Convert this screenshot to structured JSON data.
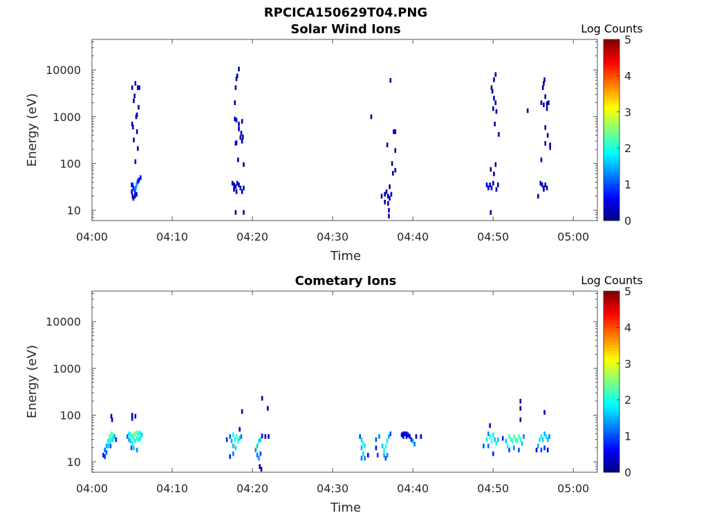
{
  "figure_title": "RPCICA150629T04.PNG",
  "colors": {
    "axis": "#262626",
    "background": "#ffffff"
  },
  "colormap": "jet",
  "chart_data": [
    {
      "type": "heatmap",
      "title": "Solar Wind Ions",
      "xlabel": "Time",
      "ylabel": "Energy (eV)",
      "yscale": "log",
      "xlim": [
        "04:00",
        "05:03"
      ],
      "ylim": [
        6,
        45000
      ],
      "xticks": [
        "04:00",
        "04:10",
        "04:20",
        "04:30",
        "04:40",
        "04:50",
        "05:00"
      ],
      "yticks": [
        "10",
        "100",
        "1000",
        "10000"
      ],
      "colorbar": {
        "label": "Log Counts",
        "min": 0,
        "max": 5,
        "ticks": [
          "0",
          "1",
          "2",
          "3",
          "4",
          "5"
        ]
      },
      "cells": [
        [
          4.95,
          35,
          0.5
        ],
        [
          5.05,
          35,
          0.6
        ],
        [
          5.15,
          30,
          0.7
        ],
        [
          5.25,
          28,
          1.0
        ],
        [
          5.35,
          25,
          0.9
        ],
        [
          5.45,
          30,
          1.3
        ],
        [
          5.55,
          35,
          1.4
        ],
        [
          5.65,
          40,
          1.2
        ],
        [
          5.75,
          42,
          0.8
        ],
        [
          5.85,
          45,
          0.6
        ],
        [
          6.05,
          50,
          0.5
        ],
        [
          4.95,
          25,
          0.3
        ],
        [
          5.05,
          20,
          0.2
        ],
        [
          5.15,
          18,
          0.2
        ],
        [
          5.35,
          20,
          0.4
        ],
        [
          5.55,
          22,
          0.5
        ],
        [
          5.0,
          4200,
          0.3
        ],
        [
          5.2,
          2200,
          0.3
        ],
        [
          5.3,
          2800,
          0.2
        ],
        [
          5.4,
          5200,
          0.3
        ],
        [
          5.7,
          4200,
          0.4
        ],
        [
          5.9,
          4200,
          0.4
        ],
        [
          5.5,
          1000,
          0.2
        ],
        [
          5.8,
          1600,
          0.2
        ],
        [
          5.0,
          700,
          0.3
        ],
        [
          5.1,
          600,
          0.3
        ],
        [
          5.2,
          320,
          0.2
        ],
        [
          5.6,
          480,
          0.2
        ],
        [
          5.7,
          210,
          0.2
        ],
        [
          5.4,
          110,
          0.2
        ],
        [
          5.6,
          1100,
          0.2
        ],
        [
          17.5,
          38,
          0.3
        ],
        [
          17.7,
          35,
          0.4
        ],
        [
          17.9,
          32,
          0.3
        ],
        [
          18.1,
          38,
          0.4
        ],
        [
          18.3,
          35,
          0.3
        ],
        [
          18.5,
          30,
          0.4
        ],
        [
          18.7,
          25,
          0.2
        ],
        [
          18.9,
          30,
          0.3
        ],
        [
          17.7,
          28,
          0.2
        ],
        [
          18.0,
          25,
          0.2
        ],
        [
          17.9,
          9,
          0.2
        ],
        [
          18.9,
          9,
          0.2
        ],
        [
          18.3,
          10500,
          0.3
        ],
        [
          18.1,
          7500,
          0.3
        ],
        [
          18.0,
          6500,
          0.3
        ],
        [
          17.9,
          4200,
          0.3
        ],
        [
          17.8,
          2000,
          0.2
        ],
        [
          17.8,
          900,
          0.3
        ],
        [
          18.0,
          850,
          0.3
        ],
        [
          18.3,
          700,
          0.2
        ],
        [
          18.7,
          800,
          0.2
        ],
        [
          18.6,
          450,
          0.2
        ],
        [
          18.8,
          370,
          0.2
        ],
        [
          18.7,
          300,
          0.2
        ],
        [
          18.0,
          280,
          0.4
        ],
        [
          17.9,
          270,
          0.3
        ],
        [
          18.2,
          120,
          0.2
        ],
        [
          18.9,
          95,
          0.2
        ],
        [
          18.3,
          550,
          0.2
        ],
        [
          18.5,
          360,
          0.2
        ],
        [
          36.1,
          20,
          0.2
        ],
        [
          36.5,
          22,
          0.2
        ],
        [
          36.9,
          20,
          0.3
        ],
        [
          37.1,
          18,
          0.4
        ],
        [
          36.7,
          25,
          0.3
        ],
        [
          37.3,
          22,
          0.3
        ],
        [
          37.1,
          32,
          0.2
        ],
        [
          36.9,
          14,
          0.3
        ],
        [
          37.0,
          10,
          0.3
        ],
        [
          37.0,
          7.5,
          0.3
        ],
        [
          36.5,
          15,
          0.2
        ],
        [
          37.2,
          6000,
          0.2
        ],
        [
          34.8,
          1000,
          0.2
        ],
        [
          37.6,
          480,
          0.3
        ],
        [
          37.8,
          480,
          0.3
        ],
        [
          36.8,
          250,
          0.2
        ],
        [
          37.8,
          190,
          0.2
        ],
        [
          37.4,
          100,
          0.2
        ],
        [
          37.8,
          72,
          0.2
        ],
        [
          37.5,
          62,
          0.2
        ],
        [
          49.2,
          35,
          0.4
        ],
        [
          49.4,
          30,
          0.6
        ],
        [
          49.6,
          35,
          0.5
        ],
        [
          49.8,
          30,
          0.4
        ],
        [
          50.0,
          38,
          0.3
        ],
        [
          50.4,
          28,
          0.3
        ],
        [
          50.6,
          35,
          0.2
        ],
        [
          49.7,
          75,
          0.2
        ],
        [
          50.1,
          60,
          0.2
        ],
        [
          50.3,
          95,
          0.2
        ],
        [
          49.7,
          9,
          0.2
        ],
        [
          50.3,
          8000,
          0.3
        ],
        [
          50.1,
          6200,
          0.3
        ],
        [
          49.8,
          4200,
          0.2
        ],
        [
          49.9,
          3500,
          0.2
        ],
        [
          50.1,
          2500,
          0.2
        ],
        [
          50.3,
          2000,
          0.2
        ],
        [
          50.0,
          1500,
          0.3
        ],
        [
          50.4,
          1300,
          0.2
        ],
        [
          50.2,
          700,
          0.3
        ],
        [
          50.7,
          420,
          0.2
        ],
        [
          54.3,
          1350,
          0.2
        ],
        [
          55.9,
          38,
          0.3
        ],
        [
          56.1,
          35,
          0.4
        ],
        [
          56.3,
          30,
          0.3
        ],
        [
          56.5,
          35,
          0.2
        ],
        [
          56.7,
          30,
          0.2
        ],
        [
          56.3,
          28,
          0.2
        ],
        [
          55.6,
          20,
          0.2
        ],
        [
          56.0,
          120,
          0.2
        ],
        [
          56.4,
          6200,
          0.3
        ],
        [
          56.3,
          5200,
          0.3
        ],
        [
          56.2,
          4200,
          0.2
        ],
        [
          56.5,
          2700,
          0.2
        ],
        [
          56.0,
          2000,
          0.2
        ],
        [
          56.3,
          1800,
          0.3
        ],
        [
          56.7,
          1900,
          0.2
        ],
        [
          56.9,
          2000,
          0.2
        ],
        [
          56.7,
          1500,
          0.2
        ],
        [
          56.5,
          590,
          0.2
        ],
        [
          56.8,
          400,
          0.2
        ],
        [
          56.5,
          270,
          0.3
        ],
        [
          57.1,
          250,
          0.3
        ],
        [
          57.1,
          220,
          0.3
        ]
      ]
    },
    {
      "type": "heatmap",
      "title": "Cometary Ions",
      "xlabel": "Time",
      "ylabel": "Energy (eV)",
      "yscale": "log",
      "xlim": [
        "04:00",
        "05:03"
      ],
      "ylim": [
        6,
        45000
      ],
      "xticks": [
        "04:00",
        "04:10",
        "04:20",
        "04:30",
        "04:40",
        "04:50",
        "05:00"
      ],
      "yticks": [
        "10",
        "100",
        "1000",
        "10000"
      ],
      "colorbar": {
        "label": "Log Counts",
        "min": 0,
        "max": 5,
        "ticks": [
          "0",
          "1",
          "2",
          "3",
          "4",
          "5"
        ]
      },
      "cells": [
        [
          1.4,
          14,
          0.7
        ],
        [
          1.6,
          18,
          1.2
        ],
        [
          1.6,
          13,
          0.9
        ],
        [
          1.8,
          22,
          1.5
        ],
        [
          1.8,
          16,
          1.1
        ],
        [
          2.0,
          28,
          1.9
        ],
        [
          2.0,
          22,
          1.6
        ],
        [
          2.2,
          35,
          2.3
        ],
        [
          2.2,
          28,
          2.0
        ],
        [
          2.4,
          40,
          2.4
        ],
        [
          2.4,
          30,
          1.9
        ],
        [
          2.6,
          38,
          2.2
        ],
        [
          2.6,
          30,
          1.8
        ],
        [
          2.8,
          35,
          1.5
        ],
        [
          3.0,
          30,
          0.8
        ],
        [
          2.3,
          22,
          1.0
        ],
        [
          2.5,
          80,
          0.4
        ],
        [
          2.4,
          95,
          0.3
        ],
        [
          4.4,
          35,
          1.2
        ],
        [
          4.6,
          40,
          1.8
        ],
        [
          4.6,
          30,
          1.5
        ],
        [
          4.8,
          38,
          2.0
        ],
        [
          4.8,
          28,
          1.7
        ],
        [
          5.0,
          35,
          2.1
        ],
        [
          5.0,
          25,
          1.9
        ],
        [
          5.2,
          38,
          2.4
        ],
        [
          5.2,
          30,
          2.2
        ],
        [
          5.4,
          40,
          2.5
        ],
        [
          5.4,
          28,
          2.0
        ],
        [
          5.6,
          42,
          2.3
        ],
        [
          5.6,
          32,
          2.1
        ],
        [
          5.8,
          40,
          2.2
        ],
        [
          5.8,
          30,
          1.9
        ],
        [
          6.0,
          42,
          2.0
        ],
        [
          6.0,
          32,
          1.8
        ],
        [
          6.2,
          38,
          1.6
        ],
        [
          5.2,
          20,
          1.6
        ],
        [
          5.6,
          18,
          1.3
        ],
        [
          5.0,
          85,
          0.3
        ],
        [
          5.0,
          100,
          0.3
        ],
        [
          5.4,
          95,
          0.3
        ],
        [
          4.9,
          20,
          1.0
        ],
        [
          16.8,
          30,
          0.8
        ],
        [
          17.2,
          35,
          1.1
        ],
        [
          17.4,
          28,
          1.5
        ],
        [
          17.6,
          38,
          1.9
        ],
        [
          17.8,
          30,
          2.0
        ],
        [
          18.0,
          35,
          2.2
        ],
        [
          18.2,
          28,
          1.9
        ],
        [
          18.4,
          32,
          1.7
        ],
        [
          18.6,
          35,
          1.2
        ],
        [
          17.6,
          22,
          1.5
        ],
        [
          17.9,
          20,
          1.7
        ],
        [
          17.6,
          15,
          1.2
        ],
        [
          17.2,
          13,
          0.8
        ],
        [
          18.4,
          50,
          0.4
        ],
        [
          18.7,
          120,
          0.3
        ],
        [
          20.4,
          18,
          1.3
        ],
        [
          20.6,
          22,
          1.6
        ],
        [
          20.8,
          28,
          1.8
        ],
        [
          21.0,
          30,
          1.6
        ],
        [
          20.6,
          14,
          1.2
        ],
        [
          20.8,
          12,
          1.4
        ],
        [
          21.0,
          15,
          1.0
        ],
        [
          20.9,
          8,
          0.2
        ],
        [
          21.1,
          7,
          0.2
        ],
        [
          21.2,
          36,
          0.6
        ],
        [
          21.6,
          35,
          0.4
        ],
        [
          22.0,
          35,
          0.3
        ],
        [
          21.2,
          230,
          0.2
        ],
        [
          21.9,
          140,
          0.2
        ],
        [
          33.4,
          35,
          1.0
        ],
        [
          33.6,
          30,
          1.6
        ],
        [
          33.8,
          25,
          1.9
        ],
        [
          34.0,
          22,
          1.8
        ],
        [
          33.6,
          20,
          1.5
        ],
        [
          33.8,
          15,
          1.7
        ],
        [
          34.0,
          12,
          1.3
        ],
        [
          33.6,
          12,
          1.2
        ],
        [
          34.4,
          14,
          0.6
        ],
        [
          35.4,
          30,
          1.0
        ],
        [
          35.8,
          35,
          1.3
        ],
        [
          36.2,
          22,
          1.6
        ],
        [
          36.4,
          18,
          1.9
        ],
        [
          36.6,
          22,
          2.0
        ],
        [
          36.8,
          28,
          1.8
        ],
        [
          37.0,
          35,
          1.5
        ],
        [
          37.2,
          40,
          1.0
        ],
        [
          36.4,
          14,
          1.5
        ],
        [
          36.8,
          14,
          1.3
        ],
        [
          35.6,
          14,
          0.9
        ],
        [
          35.4,
          20,
          0.7
        ],
        [
          36.6,
          12,
          1.0
        ],
        [
          38.6,
          38,
          0.5
        ],
        [
          38.8,
          40,
          0.4
        ],
        [
          39.0,
          40,
          0.5
        ],
        [
          39.2,
          40,
          0.4
        ],
        [
          39.4,
          38,
          0.5
        ],
        [
          39.6,
          35,
          0.4
        ],
        [
          39.8,
          30,
          0.8
        ],
        [
          40.0,
          28,
          1.5
        ],
        [
          40.2,
          24,
          1.2
        ],
        [
          40.4,
          35,
          0.5
        ],
        [
          41.0,
          35,
          0.3
        ],
        [
          38.8,
          35,
          0.4
        ],
        [
          39.2,
          35,
          0.5
        ],
        [
          48.8,
          22,
          1.0
        ],
        [
          49.2,
          30,
          1.8
        ],
        [
          49.4,
          40,
          1.3
        ],
        [
          49.6,
          35,
          2.0
        ],
        [
          49.8,
          28,
          2.2
        ],
        [
          50.0,
          38,
          1.8
        ],
        [
          50.2,
          30,
          1.6
        ],
        [
          50.4,
          25,
          1.9
        ],
        [
          50.6,
          30,
          1.6
        ],
        [
          49.6,
          60,
          0.4
        ],
        [
          50.0,
          15,
          0.8
        ],
        [
          49.4,
          22,
          1.2
        ],
        [
          51.2,
          32,
          0.8
        ],
        [
          51.6,
          28,
          1.6
        ],
        [
          51.8,
          22,
          1.9
        ],
        [
          52.0,
          35,
          2.1
        ],
        [
          52.2,
          30,
          2.2
        ],
        [
          52.4,
          28,
          2.0
        ],
        [
          52.6,
          35,
          2.4
        ],
        [
          52.8,
          30,
          2.2
        ],
        [
          53.0,
          28,
          2.0
        ],
        [
          53.2,
          35,
          2.3
        ],
        [
          53.4,
          30,
          2.1
        ],
        [
          53.6,
          25,
          1.6
        ],
        [
          53.8,
          35,
          1.2
        ],
        [
          52.0,
          18,
          1.0
        ],
        [
          52.6,
          20,
          1.3
        ],
        [
          53.2,
          18,
          1.0
        ],
        [
          53.4,
          80,
          0.3
        ],
        [
          53.4,
          140,
          0.2
        ],
        [
          53.4,
          200,
          0.2
        ],
        [
          55.4,
          18,
          0.6
        ],
        [
          55.6,
          22,
          1.5
        ],
        [
          55.8,
          30,
          1.8
        ],
        [
          56.0,
          35,
          1.9
        ],
        [
          56.2,
          30,
          1.7
        ],
        [
          56.4,
          40,
          1.5
        ],
        [
          56.6,
          35,
          1.8
        ],
        [
          56.8,
          30,
          1.6
        ],
        [
          57.0,
          35,
          1.3
        ],
        [
          56.0,
          18,
          1.0
        ],
        [
          56.4,
          20,
          0.8
        ],
        [
          56.8,
          18,
          0.6
        ],
        [
          56.4,
          115,
          0.2
        ]
      ]
    }
  ]
}
